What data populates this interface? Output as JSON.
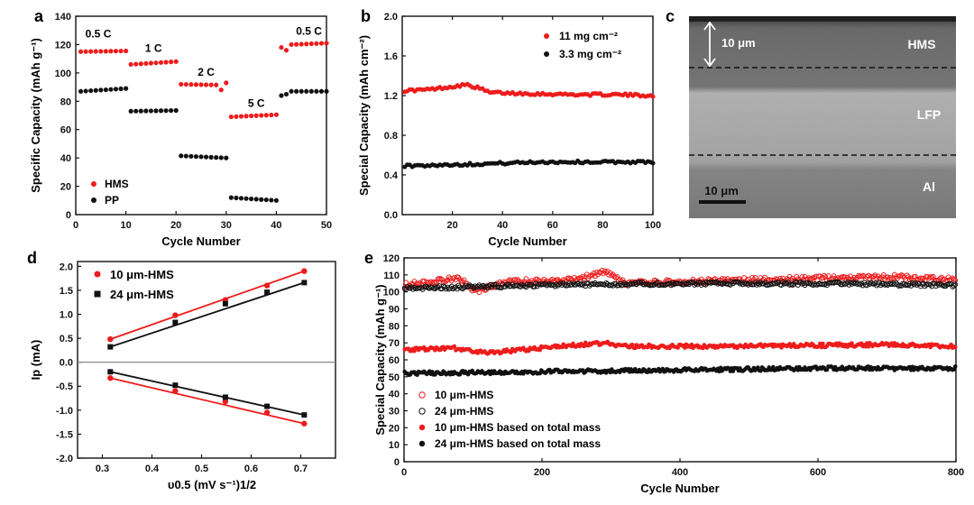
{
  "chart_data": [
    {
      "id": "a",
      "type": "scatter",
      "panel_label": "a",
      "xlabel": "Cycle Number",
      "ylabel": "Specific Capacity (mAh g⁻¹)",
      "xlim": [
        0,
        50
      ],
      "ylim": [
        0,
        140
      ],
      "xticks": [
        0,
        10,
        20,
        30,
        40,
        50
      ],
      "yticks": [
        0,
        20,
        40,
        60,
        80,
        100,
        120,
        140
      ],
      "rate_labels": [
        {
          "text": "0.5 C",
          "x": 4.5,
          "y": 125
        },
        {
          "text": "1 C",
          "x": 15.5,
          "y": 115
        },
        {
          "text": "2 C",
          "x": 26,
          "y": 98
        },
        {
          "text": "5 C",
          "x": 36,
          "y": 76
        },
        {
          "text": "0.5 C",
          "x": 46.5,
          "y": 127
        }
      ],
      "legend": [
        "HMS",
        "PP"
      ],
      "series": [
        {
          "name": "HMS",
          "color": "#ee1c1c",
          "segments": [
            {
              "x": [
                1,
                10
              ],
              "start": 115,
              "end": 115.5
            },
            {
              "x": [
                11,
                20
              ],
              "start": 106,
              "end": 108
            },
            {
              "x": [
                21,
                28
              ],
              "start": 92,
              "end": 91.5
            },
            {
              "x": [
                29,
                30
              ],
              "start": 88,
              "end": 93
            },
            {
              "x": [
                31,
                40
              ],
              "start": 69,
              "end": 70.5
            },
            {
              "x": [
                41,
                42
              ],
              "start": 118,
              "end": 116
            },
            {
              "x": [
                43,
                50
              ],
              "start": 120,
              "end": 121
            }
          ]
        },
        {
          "name": "PP",
          "color": "#111111",
          "segments": [
            {
              "x": [
                1,
                10
              ],
              "start": 87,
              "end": 89
            },
            {
              "x": [
                11,
                20
              ],
              "start": 73,
              "end": 73.5
            },
            {
              "x": [
                21,
                30
              ],
              "start": 41.5,
              "end": 40
            },
            {
              "x": [
                31,
                40
              ],
              "start": 12,
              "end": 10
            },
            {
              "x": [
                41,
                42
              ],
              "start": 84,
              "end": 85
            },
            {
              "x": [
                43,
                50
              ],
              "start": 87,
              "end": 87
            }
          ]
        }
      ]
    },
    {
      "id": "b",
      "type": "scatter",
      "panel_label": "b",
      "xlabel": "Cycle Number",
      "ylabel": "Special Capacity (mAh cm⁻²)",
      "xlim": [
        0,
        100
      ],
      "ylim": [
        0,
        2.0
      ],
      "xticks": [
        20,
        40,
        60,
        80,
        100
      ],
      "yticks": [
        0.0,
        0.4,
        0.8,
        1.2,
        1.6,
        2.0
      ],
      "ytick_labels": [
        "0.0",
        "0.4",
        "0.8",
        "1.2",
        "1.6",
        "2.0"
      ],
      "legend": [
        "11 mg cm⁻²",
        "3.3 mg cm⁻²"
      ],
      "series": [
        {
          "name": "11 mg cm⁻²",
          "color": "#ee1c1c",
          "keyframes": [
            [
              1,
              1.25
            ],
            [
              10,
              1.26
            ],
            [
              20,
              1.29
            ],
            [
              25,
              1.31
            ],
            [
              30,
              1.28
            ],
            [
              35,
              1.23
            ],
            [
              50,
              1.22
            ],
            [
              70,
              1.21
            ],
            [
              85,
              1.21
            ],
            [
              100,
              1.2
            ]
          ]
        },
        {
          "name": "3.3 mg cm⁻²",
          "color": "#111111",
          "keyframes": [
            [
              1,
              0.49
            ],
            [
              30,
              0.51
            ],
            [
              55,
              0.53
            ],
            [
              80,
              0.53
            ],
            [
              100,
              0.53
            ]
          ]
        }
      ]
    },
    {
      "id": "d",
      "type": "line",
      "panel_label": "d",
      "xlabel": "υ0.5 (mV s⁻¹)1/2",
      "ylabel": "Ip (mA)",
      "xlim": [
        0.25,
        0.77
      ],
      "ylim": [
        -2.0,
        2.1
      ],
      "xticks": [
        0.3,
        0.4,
        0.5,
        0.6,
        0.7
      ],
      "yticks": [
        -2.0,
        -1.5,
        -1.0,
        -0.5,
        0.0,
        0.5,
        1.0,
        1.5,
        2.0
      ],
      "ytick_labels": [
        "-2.0",
        "-1.5",
        "-1.0",
        "-0.5",
        "0.0",
        "0.5",
        "1.0",
        "1.5",
        "2.0"
      ],
      "legend": [
        "10 μm-HMS",
        "24 μm-HMS"
      ],
      "series": [
        {
          "name": "10 μm-HMS",
          "color": "#ee1c1c",
          "marker": "circle",
          "x": [
            0.316,
            0.447,
            0.548,
            0.632,
            0.707
          ],
          "y_upper": [
            0.48,
            0.98,
            1.3,
            1.6,
            1.9
          ],
          "y_lower": [
            -0.33,
            -0.6,
            -0.82,
            -1.05,
            -1.28
          ]
        },
        {
          "name": "24 μm-HMS",
          "color": "#111111",
          "marker": "square",
          "x": [
            0.316,
            0.447,
            0.548,
            0.632,
            0.707
          ],
          "y_upper": [
            0.32,
            0.83,
            1.22,
            1.46,
            1.66
          ],
          "y_lower": [
            -0.2,
            -0.48,
            -0.73,
            -0.92,
            -1.1
          ]
        }
      ]
    },
    {
      "id": "e",
      "type": "scatter",
      "panel_label": "e",
      "xlabel": "Cycle Number",
      "ylabel": "Special Capacity (mAh g⁻¹)",
      "xlim": [
        0,
        800
      ],
      "ylim": [
        0,
        120
      ],
      "xticks": [
        0,
        200,
        400,
        600,
        800
      ],
      "yticks": [
        0,
        10,
        20,
        30,
        40,
        50,
        60,
        70,
        80,
        90,
        100,
        110,
        120
      ],
      "legend": [
        "10 μm-HMS",
        "24 μm-HMS",
        "10 μm-HMS based on total mass",
        "24 μm-HMS based on total mass"
      ],
      "series": [
        {
          "name": "10 μm-HMS",
          "color": "#ee1c1c",
          "filled": false,
          "keyframes": [
            [
              1,
              104
            ],
            [
              60,
              107
            ],
            [
              80,
              109
            ],
            [
              95,
              102
            ],
            [
              110,
              101
            ],
            [
              150,
              106
            ],
            [
              250,
              107
            ],
            [
              290,
              112
            ],
            [
              320,
              105
            ],
            [
              500,
              107
            ],
            [
              700,
              109
            ],
            [
              800,
              107
            ]
          ]
        },
        {
          "name": "24 μm-HMS",
          "color": "#111111",
          "filled": false,
          "keyframes": [
            [
              1,
              102
            ],
            [
              100,
              103
            ],
            [
              200,
              104
            ],
            [
              400,
              105
            ],
            [
              600,
              105
            ],
            [
              800,
              104
            ]
          ]
        },
        {
          "name": "10 μm-HMS based on total mass",
          "color": "#ee1c1c",
          "filled": true,
          "keyframes": [
            [
              1,
              66
            ],
            [
              70,
              67
            ],
            [
              90,
              66
            ],
            [
              120,
              64
            ],
            [
              200,
              67
            ],
            [
              290,
              70
            ],
            [
              320,
              68
            ],
            [
              500,
              68
            ],
            [
              700,
              69
            ],
            [
              800,
              68
            ]
          ]
        },
        {
          "name": "24 μm-HMS based on total mass",
          "color": "#111111",
          "filled": true,
          "keyframes": [
            [
              1,
              52
            ],
            [
              200,
              53
            ],
            [
              400,
              54
            ],
            [
              600,
              55
            ],
            [
              800,
              55
            ]
          ]
        }
      ]
    }
  ],
  "sem_image": {
    "panel_label": "c",
    "layer_labels": [
      "HMS",
      "LFP",
      "Al"
    ],
    "thickness_label": "10 μm",
    "scale_bar_label": "10 μm"
  }
}
